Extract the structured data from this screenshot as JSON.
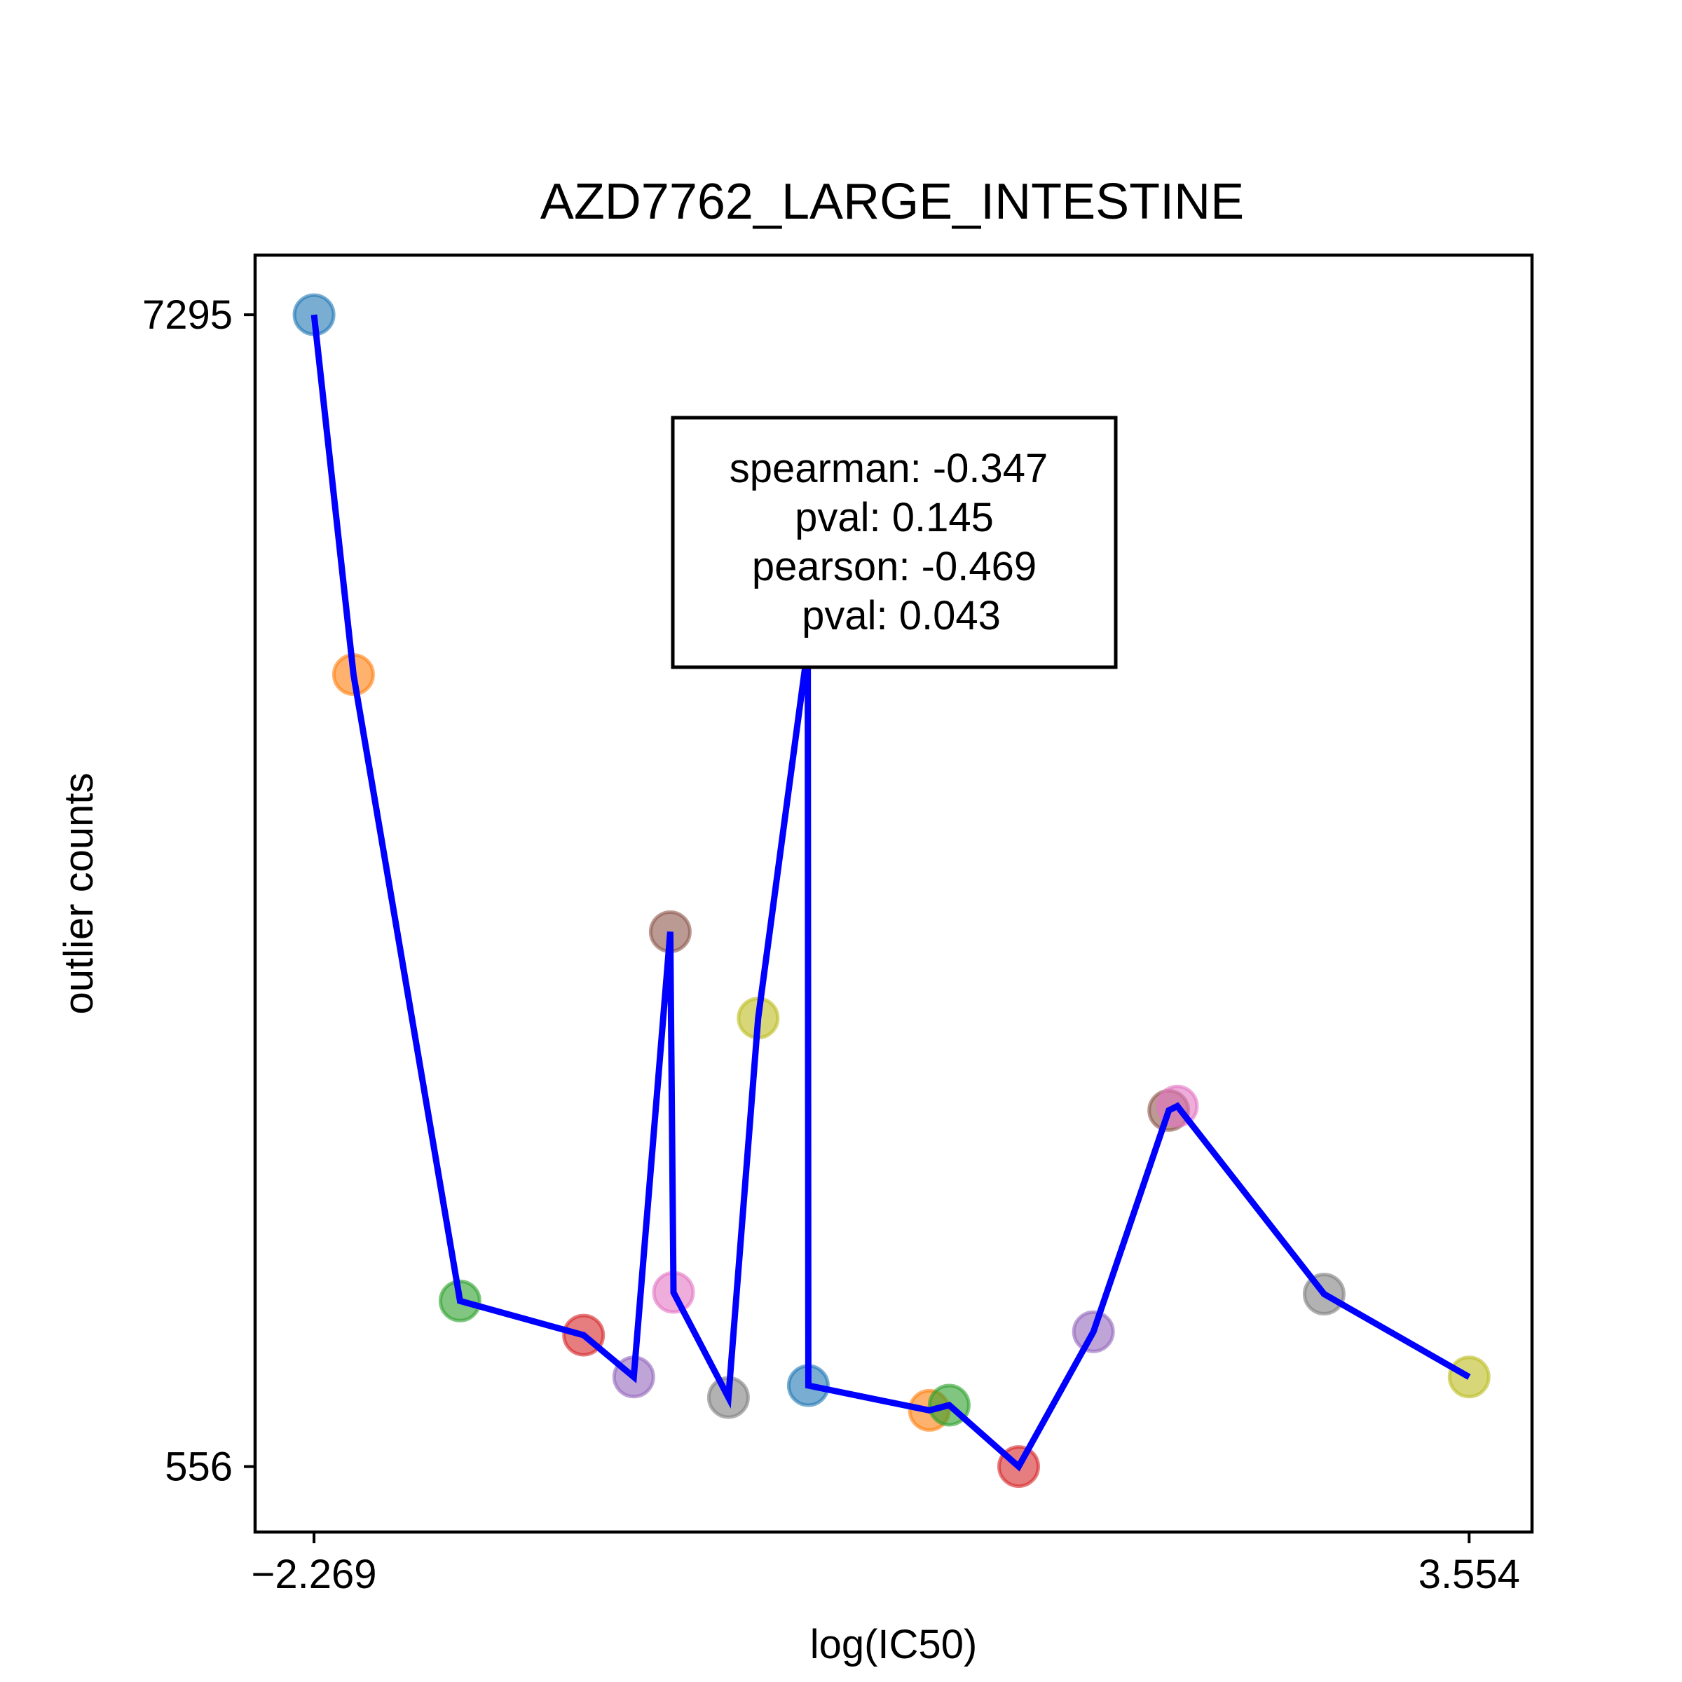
{
  "chart_data": {
    "type": "scatter",
    "title": "AZD7762_LARGE_INTESTINE",
    "xlabel": "log(IC50)",
    "ylabel": "outlier counts",
    "xticks": [
      {
        "value": -2.269,
        "label": "−2.269"
      },
      {
        "value": 3.554,
        "label": "3.554"
      }
    ],
    "yticks": [
      {
        "value": 7295,
        "label": "7295"
      },
      {
        "value": 556,
        "label": "556"
      }
    ],
    "xlim": [
      -2.566,
      3.871
    ],
    "ylim": [
      173,
      7644
    ],
    "grid": false,
    "line_color": "#0000ff",
    "points": [
      {
        "x": -2.269,
        "y": 7295,
        "color": "#1f77b4"
      },
      {
        "x": -2.07,
        "y": 5190,
        "color": "#ff7f0e"
      },
      {
        "x": -1.533,
        "y": 1525,
        "color": "#2ca02c"
      },
      {
        "x": -0.91,
        "y": 1325,
        "color": "#d62728"
      },
      {
        "x": -0.657,
        "y": 1080,
        "color": "#9467bd"
      },
      {
        "x": -0.473,
        "y": 3685,
        "color": "#8c564b"
      },
      {
        "x": -0.457,
        "y": 1575,
        "color": "#e377c2"
      },
      {
        "x": -0.18,
        "y": 960,
        "color": "#7f7f7f"
      },
      {
        "x": -0.03,
        "y": 3180,
        "color": "#bcbd22"
      },
      {
        "x": 0.22,
        "y": 5350,
        "color": "#17becf"
      },
      {
        "x": 0.223,
        "y": 1030,
        "color": "#1f77b4"
      },
      {
        "x": 0.833,
        "y": 885,
        "color": "#ff7f0e"
      },
      {
        "x": 0.933,
        "y": 915,
        "color": "#2ca02c"
      },
      {
        "x": 1.283,
        "y": 556,
        "color": "#d62728"
      },
      {
        "x": 1.66,
        "y": 1345,
        "color": "#9467bd"
      },
      {
        "x": 2.04,
        "y": 2640,
        "color": "#8c564b"
      },
      {
        "x": 2.083,
        "y": 2665,
        "color": "#e377c2"
      },
      {
        "x": 2.823,
        "y": 1565,
        "color": "#7f7f7f"
      },
      {
        "x": 3.554,
        "y": 1080,
        "color": "#bcbd22"
      }
    ],
    "annotation": {
      "lines": [
        "spearman: -0.347",
        "pval: 0.145",
        "pearson: -0.469",
        "pval: 0.043"
      ]
    }
  }
}
